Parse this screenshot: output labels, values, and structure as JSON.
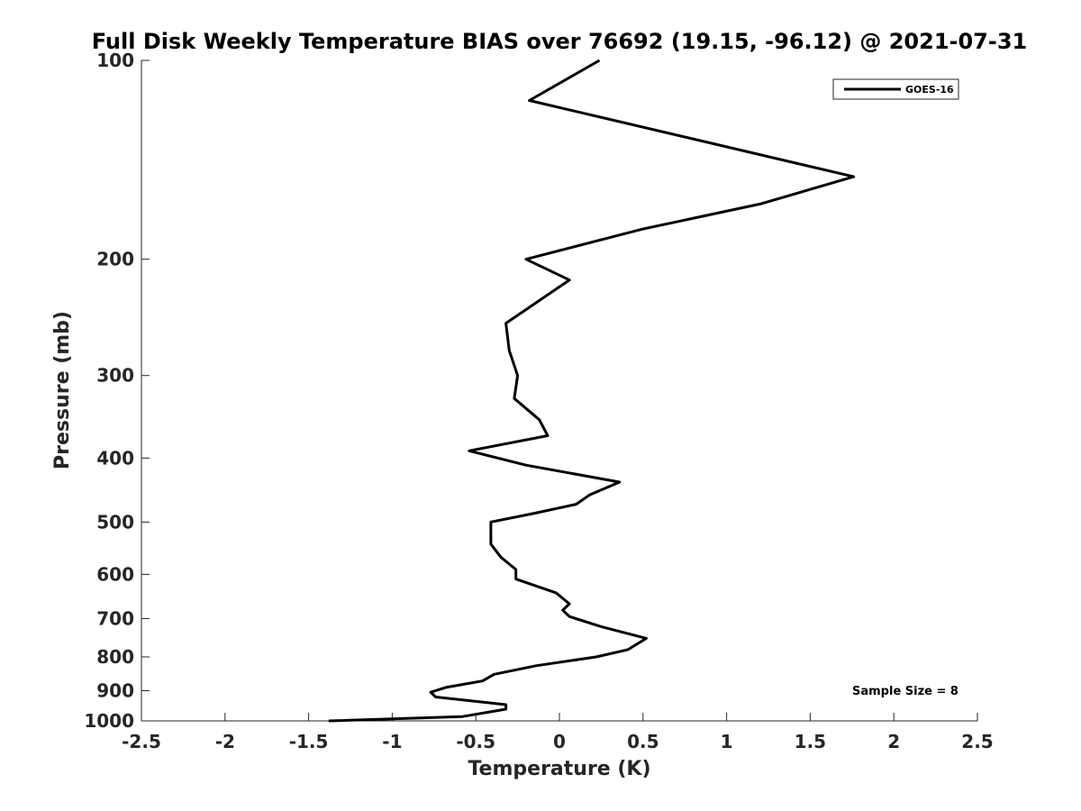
{
  "chart_data": {
    "type": "line",
    "title": "Full Disk Weekly Temperature BIAS over 76692 (19.15, -96.12) @ 2021-07-31",
    "xlabel": "Temperature (K)",
    "ylabel": "Pressure (mb)",
    "xlim": [
      -2.5,
      2.5
    ],
    "ylim": [
      1000,
      100
    ],
    "y_scale": "log",
    "y_reversed": true,
    "grid": false,
    "legend_position": "top-right",
    "x_ticks": [
      "-2.5",
      "-2",
      "-1.5",
      "-1",
      "-0.5",
      "0",
      "0.5",
      "1",
      "1.5",
      "2",
      "2.5"
    ],
    "y_ticks": [
      "100",
      "200",
      "300",
      "400",
      "500",
      "600",
      "700",
      "800",
      "900",
      "1000"
    ],
    "series": [
      {
        "name": "GOES-16",
        "color": "#000000",
        "points": [
          {
            "x": 0.24,
            "y": 100
          },
          {
            "x": -0.18,
            "y": 115
          },
          {
            "x": 1.76,
            "y": 150
          },
          {
            "x": 1.2,
            "y": 165
          },
          {
            "x": 0.5,
            "y": 180
          },
          {
            "x": -0.2,
            "y": 200
          },
          {
            "x": 0.06,
            "y": 215
          },
          {
            "x": -0.32,
            "y": 250
          },
          {
            "x": -0.3,
            "y": 275
          },
          {
            "x": -0.25,
            "y": 300
          },
          {
            "x": -0.27,
            "y": 325
          },
          {
            "x": -0.12,
            "y": 350
          },
          {
            "x": -0.07,
            "y": 370
          },
          {
            "x": -0.54,
            "y": 390
          },
          {
            "x": -0.2,
            "y": 410
          },
          {
            "x": 0.36,
            "y": 435
          },
          {
            "x": 0.18,
            "y": 455
          },
          {
            "x": 0.1,
            "y": 470
          },
          {
            "x": -0.15,
            "y": 485
          },
          {
            "x": -0.41,
            "y": 500
          },
          {
            "x": -0.41,
            "y": 540
          },
          {
            "x": -0.35,
            "y": 565
          },
          {
            "x": -0.26,
            "y": 590
          },
          {
            "x": -0.26,
            "y": 610
          },
          {
            "x": -0.02,
            "y": 640
          },
          {
            "x": 0.06,
            "y": 665
          },
          {
            "x": 0.02,
            "y": 680
          },
          {
            "x": 0.06,
            "y": 695
          },
          {
            "x": 0.25,
            "y": 720
          },
          {
            "x": 0.52,
            "y": 750
          },
          {
            "x": 0.41,
            "y": 780
          },
          {
            "x": 0.22,
            "y": 800
          },
          {
            "x": -0.14,
            "y": 825
          },
          {
            "x": -0.39,
            "y": 850
          },
          {
            "x": -0.46,
            "y": 870
          },
          {
            "x": -0.68,
            "y": 890
          },
          {
            "x": -0.77,
            "y": 905
          },
          {
            "x": -0.74,
            "y": 920
          },
          {
            "x": -0.32,
            "y": 945
          },
          {
            "x": -0.32,
            "y": 960
          },
          {
            "x": -0.58,
            "y": 985
          },
          {
            "x": -1.38,
            "y": 1000
          }
        ]
      }
    ],
    "annotation": "Sample Size = 8"
  }
}
